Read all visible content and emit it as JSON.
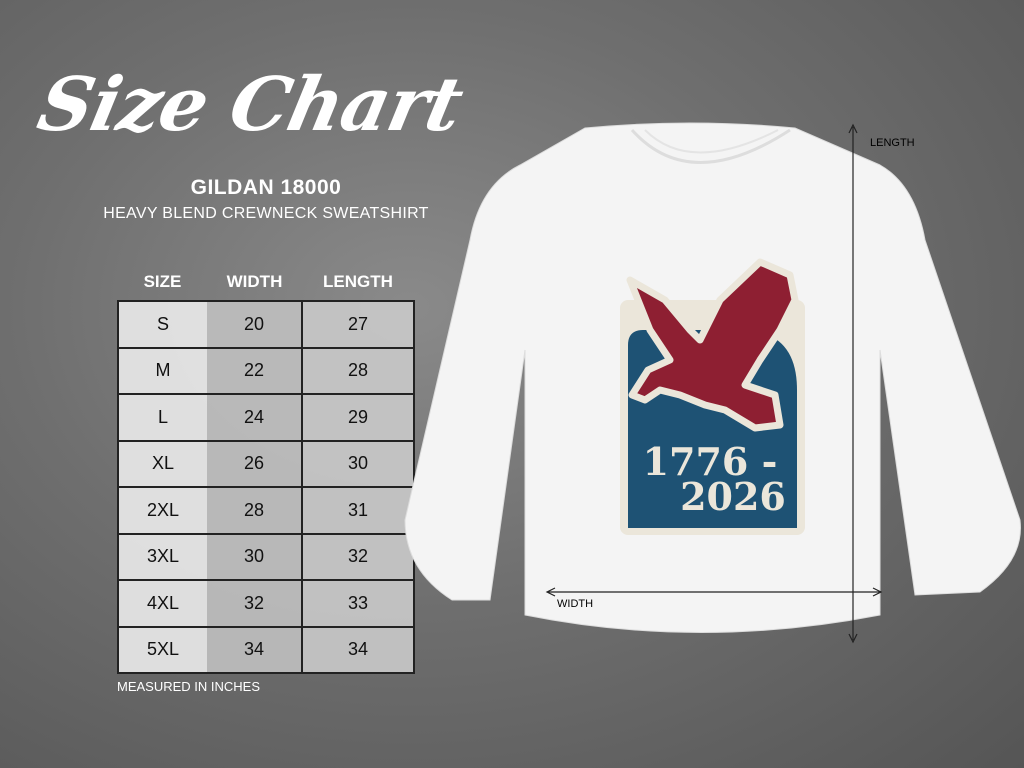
{
  "title": "Size Chart",
  "brand": "GILDAN 18000",
  "subtitle": "HEAVY BLEND CREWNECK SWEATSHIRT",
  "table": {
    "headers": [
      "SIZE",
      "WIDTH",
      "LENGTH"
    ],
    "rows": [
      [
        "S",
        "20",
        "27"
      ],
      [
        "M",
        "22",
        "28"
      ],
      [
        "L",
        "24",
        "29"
      ],
      [
        "XL",
        "26",
        "30"
      ],
      [
        "2XL",
        "28",
        "31"
      ],
      [
        "3XL",
        "30",
        "32"
      ],
      [
        "4XL",
        "32",
        "33"
      ],
      [
        "5XL",
        "34",
        "34"
      ]
    ]
  },
  "note": "MEASURED IN INCHES",
  "garment": {
    "length_label": "LENGTH",
    "width_label": "WIDTH",
    "print_text_line1": "1776 -",
    "print_text_line2": "2026",
    "colors": {
      "shirt": "#f4f4f4",
      "eagle": "#8e1f32",
      "panel": "#1e5274",
      "cream": "#ebe6da"
    }
  }
}
